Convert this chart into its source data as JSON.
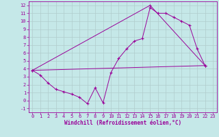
{
  "xlabel": "Windchill (Refroidissement éolien,°C)",
  "bg_color": "#c5e8e8",
  "grid_color": "#b0cccc",
  "line_color": "#990099",
  "xlim": [
    -0.5,
    23.5
  ],
  "ylim": [
    -1.5,
    12.5
  ],
  "xticks": [
    0,
    1,
    2,
    3,
    4,
    5,
    6,
    7,
    8,
    9,
    10,
    11,
    12,
    13,
    14,
    15,
    16,
    17,
    18,
    19,
    20,
    21,
    22,
    23
  ],
  "yticks": [
    -1,
    0,
    1,
    2,
    3,
    4,
    5,
    6,
    7,
    8,
    9,
    10,
    11,
    12
  ],
  "line1_x": [
    0,
    1,
    2,
    3,
    4,
    5,
    6,
    7,
    8,
    9,
    10,
    11,
    12,
    13,
    14,
    15,
    16,
    17,
    18,
    19,
    20,
    21,
    22
  ],
  "line1_y": [
    3.8,
    3.2,
    2.2,
    1.4,
    1.1,
    0.8,
    0.4,
    -0.4,
    1.6,
    -0.3,
    3.5,
    5.3,
    6.5,
    7.5,
    7.8,
    11.7,
    11.0,
    11.0,
    10.5,
    10.0,
    9.5,
    6.5,
    4.4
  ],
  "line2_x": [
    0,
    15,
    22
  ],
  "line2_y": [
    3.8,
    12.0,
    4.4
  ],
  "line3_x": [
    0,
    22
  ],
  "line3_y": [
    3.8,
    4.4
  ],
  "xlabel_fontsize": 5.5,
  "tick_fontsize": 5.0
}
